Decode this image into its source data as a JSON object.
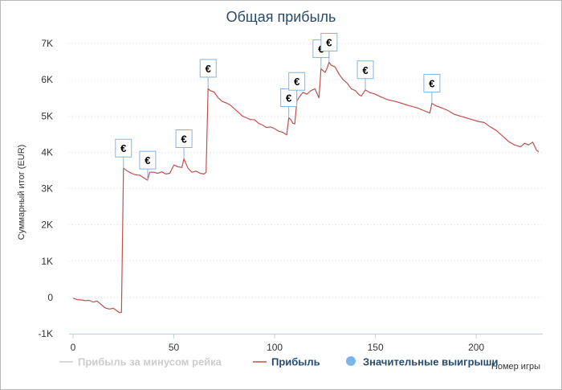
{
  "chart_data": {
    "type": "line",
    "title": "Общая прибыль",
    "xlabel": "Номер игры",
    "ylabel": "Суммарный итог (EUR)",
    "xlim": [
      -2,
      233
    ],
    "ylim": [
      -1000,
      7000
    ],
    "x_ticks": [
      0,
      50,
      100,
      150,
      200
    ],
    "y_ticks": [
      -1000,
      0,
      1000,
      2000,
      3000,
      4000,
      5000,
      6000,
      7000
    ],
    "y_tick_labels": [
      "-1K",
      "0",
      "1K",
      "2K",
      "3K",
      "4K",
      "5K",
      "6K",
      "7K"
    ],
    "grid": "horizontal dotted",
    "legend_position": "bottom",
    "series": [
      {
        "name": "Прибыль за минусом рейка",
        "color": "#cccccc",
        "hidden": true,
        "points": []
      },
      {
        "name": "Прибыль",
        "color": "#c0504d",
        "points": [
          [
            0,
            -20
          ],
          [
            2,
            -60
          ],
          [
            4,
            -70
          ],
          [
            6,
            -90
          ],
          [
            8,
            -80
          ],
          [
            10,
            -130
          ],
          [
            12,
            -100
          ],
          [
            14,
            -200
          ],
          [
            16,
            -290
          ],
          [
            18,
            -320
          ],
          [
            20,
            -300
          ],
          [
            22,
            -380
          ],
          [
            23,
            -420
          ],
          [
            24,
            -410
          ],
          [
            25,
            3560
          ],
          [
            27,
            3480
          ],
          [
            29,
            3420
          ],
          [
            31,
            3380
          ],
          [
            33,
            3370
          ],
          [
            35,
            3300
          ],
          [
            37,
            3230
          ],
          [
            38,
            3450
          ],
          [
            40,
            3450
          ],
          [
            42,
            3420
          ],
          [
            44,
            3460
          ],
          [
            46,
            3400
          ],
          [
            48,
            3420
          ],
          [
            50,
            3650
          ],
          [
            52,
            3600
          ],
          [
            54,
            3580
          ],
          [
            55,
            3820
          ],
          [
            57,
            3560
          ],
          [
            59,
            3450
          ],
          [
            61,
            3480
          ],
          [
            63,
            3420
          ],
          [
            65,
            3400
          ],
          [
            66,
            3450
          ],
          [
            67,
            5760
          ],
          [
            68,
            5700
          ],
          [
            70,
            5660
          ],
          [
            72,
            5500
          ],
          [
            74,
            5400
          ],
          [
            76,
            5360
          ],
          [
            78,
            5300
          ],
          [
            80,
            5200
          ],
          [
            82,
            5100
          ],
          [
            84,
            5000
          ],
          [
            86,
            4950
          ],
          [
            88,
            4900
          ],
          [
            90,
            4900
          ],
          [
            92,
            4800
          ],
          [
            94,
            4750
          ],
          [
            96,
            4680
          ],
          [
            98,
            4700
          ],
          [
            100,
            4650
          ],
          [
            102,
            4580
          ],
          [
            104,
            4550
          ],
          [
            106,
            4480
          ],
          [
            107,
            4950
          ],
          [
            108,
            4900
          ],
          [
            109,
            4800
          ],
          [
            110,
            4780
          ],
          [
            111,
            5400
          ],
          [
            112,
            5500
          ],
          [
            114,
            5650
          ],
          [
            116,
            5600
          ],
          [
            118,
            5700
          ],
          [
            120,
            5750
          ],
          [
            122,
            5500
          ],
          [
            123,
            6300
          ],
          [
            124,
            6250
          ],
          [
            125,
            6200
          ],
          [
            126,
            6320
          ],
          [
            127,
            6480
          ],
          [
            128,
            6400
          ],
          [
            130,
            6350
          ],
          [
            132,
            6150
          ],
          [
            134,
            6000
          ],
          [
            136,
            5900
          ],
          [
            138,
            5750
          ],
          [
            140,
            5700
          ],
          [
            142,
            5580
          ],
          [
            143,
            5550
          ],
          [
            145,
            5720
          ],
          [
            147,
            5650
          ],
          [
            150,
            5600
          ],
          [
            153,
            5520
          ],
          [
            156,
            5450
          ],
          [
            160,
            5400
          ],
          [
            163,
            5350
          ],
          [
            167,
            5280
          ],
          [
            171,
            5220
          ],
          [
            174,
            5150
          ],
          [
            177,
            5080
          ],
          [
            178,
            5350
          ],
          [
            180,
            5280
          ],
          [
            183,
            5220
          ],
          [
            186,
            5150
          ],
          [
            189,
            5050
          ],
          [
            192,
            5000
          ],
          [
            195,
            4950
          ],
          [
            198,
            4900
          ],
          [
            201,
            4850
          ],
          [
            204,
            4820
          ],
          [
            207,
            4700
          ],
          [
            210,
            4600
          ],
          [
            213,
            4450
          ],
          [
            216,
            4300
          ],
          [
            219,
            4200
          ],
          [
            222,
            4150
          ],
          [
            224,
            4250
          ],
          [
            226,
            4200
          ],
          [
            228,
            4280
          ],
          [
            230,
            4050
          ],
          [
            231,
            4020
          ]
        ]
      },
      {
        "name": "Значительные выигрыши",
        "color": "#7cb5ec",
        "marker": "flag",
        "flag_label": "€",
        "points": [
          [
            25,
            3560
          ],
          [
            37,
            3230
          ],
          [
            55,
            3820
          ],
          [
            67,
            5760
          ],
          [
            107,
            4950
          ],
          [
            111,
            5400
          ],
          [
            123,
            6300
          ],
          [
            127,
            6480
          ],
          [
            145,
            5720
          ],
          [
            178,
            5350
          ]
        ]
      }
    ]
  }
}
